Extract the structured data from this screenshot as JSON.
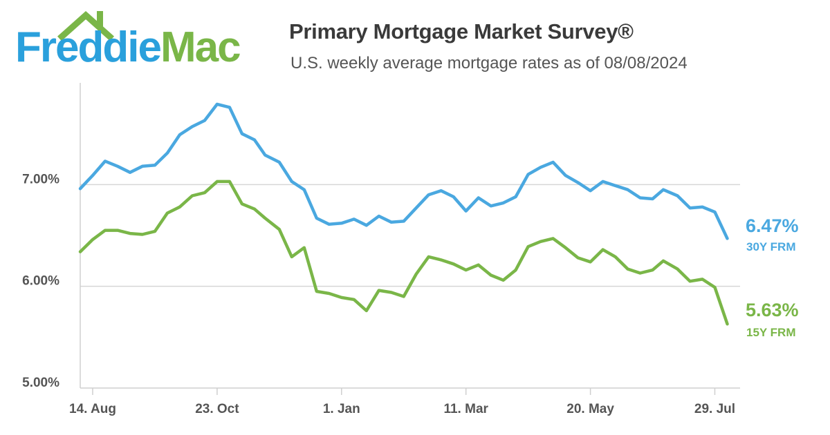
{
  "logo": {
    "text": "FreddieMac",
    "word1": "Freddie",
    "word2": "Mac",
    "colors": {
      "blue": "#2aa0dc",
      "green": "#7ab648"
    }
  },
  "header": {
    "title": "Primary Mortgage Market Survey®",
    "subtitle": "U.S. weekly average mortgage rates as of 08/08/2024"
  },
  "chart_data": {
    "type": "line",
    "title": "Primary Mortgage Market Survey®",
    "subtitle": "U.S. weekly average mortgage rates as of 08/08/2024",
    "xlabel": "",
    "ylabel": "",
    "x_ticks": [
      "14. Aug",
      "23. Oct",
      "1. Jan",
      "11. Mar",
      "20. May",
      "29. Jul"
    ],
    "y_ticks": [
      "5.00%",
      "6.00%",
      "7.00%"
    ],
    "ylim": [
      5.0,
      8.0
    ],
    "grid": true,
    "x": [
      "2023-08-10",
      "2023-08-17",
      "2023-08-24",
      "2023-08-31",
      "2023-09-07",
      "2023-09-14",
      "2023-09-21",
      "2023-09-28",
      "2023-10-05",
      "2023-10-12",
      "2023-10-19",
      "2023-10-26",
      "2023-11-02",
      "2023-11-09",
      "2023-11-16",
      "2023-11-22",
      "2023-11-30",
      "2023-12-07",
      "2023-12-14",
      "2023-12-21",
      "2023-12-28",
      "2024-01-04",
      "2024-01-11",
      "2024-01-18",
      "2024-01-25",
      "2024-02-01",
      "2024-02-08",
      "2024-02-15",
      "2024-02-22",
      "2024-02-29",
      "2024-03-07",
      "2024-03-14",
      "2024-03-21",
      "2024-03-28",
      "2024-04-04",
      "2024-04-11",
      "2024-04-18",
      "2024-04-25",
      "2024-05-02",
      "2024-05-09",
      "2024-05-16",
      "2024-05-23",
      "2024-05-30",
      "2024-06-06",
      "2024-06-13",
      "2024-06-20",
      "2024-06-27",
      "2024-07-03",
      "2024-07-11",
      "2024-07-18",
      "2024-07-25",
      "2024-08-01",
      "2024-08-08"
    ],
    "series": [
      {
        "name": "30Y FRM",
        "color": "#4aa8e0",
        "values": [
          6.96,
          7.09,
          7.23,
          7.18,
          7.12,
          7.18,
          7.19,
          7.31,
          7.49,
          7.57,
          7.63,
          7.79,
          7.76,
          7.5,
          7.44,
          7.29,
          7.22,
          7.03,
          6.95,
          6.67,
          6.61,
          6.62,
          6.66,
          6.6,
          6.69,
          6.63,
          6.64,
          6.77,
          6.9,
          6.94,
          6.88,
          6.74,
          6.87,
          6.79,
          6.82,
          6.88,
          7.1,
          7.17,
          7.22,
          7.09,
          7.02,
          6.94,
          7.03,
          6.99,
          6.95,
          6.87,
          6.86,
          6.95,
          6.89,
          6.77,
          6.78,
          6.73,
          6.47
        ]
      },
      {
        "name": "15Y FRM",
        "color": "#7ab648",
        "values": [
          6.34,
          6.46,
          6.55,
          6.55,
          6.52,
          6.51,
          6.54,
          6.72,
          6.78,
          6.89,
          6.92,
          7.03,
          7.03,
          6.81,
          6.76,
          6.67,
          6.56,
          6.29,
          6.38,
          5.95,
          5.93,
          5.89,
          5.87,
          5.76,
          5.96,
          5.94,
          5.9,
          6.12,
          6.29,
          6.26,
          6.22,
          6.16,
          6.21,
          6.11,
          6.06,
          6.16,
          6.39,
          6.44,
          6.47,
          6.38,
          6.28,
          6.24,
          6.36,
          6.29,
          6.17,
          6.13,
          6.16,
          6.25,
          6.17,
          6.05,
          6.07,
          5.99,
          5.63
        ]
      }
    ],
    "end_labels": [
      {
        "value": "6.47%",
        "label": "30Y FRM",
        "color": "#4aa8e0"
      },
      {
        "value": "5.63%",
        "label": "15Y FRM",
        "color": "#7ab648"
      }
    ]
  }
}
